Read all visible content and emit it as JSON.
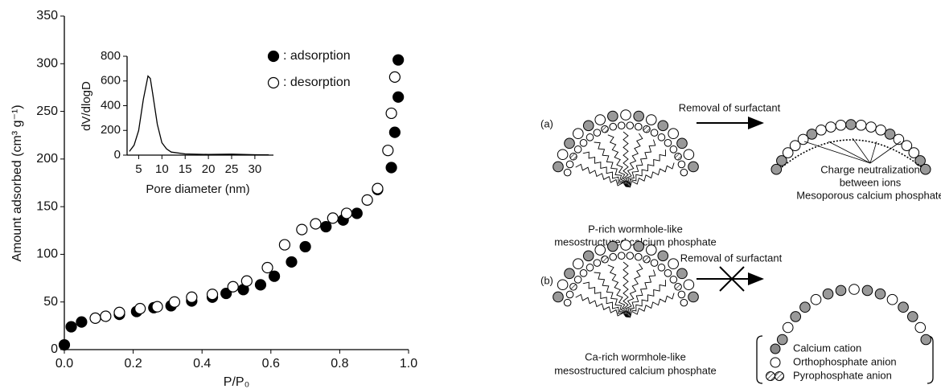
{
  "chart_data": [
    {
      "type": "scatter",
      "xlabel": "P/P₀",
      "ylabel": "Amount adsorbed (cm³ g⁻¹)",
      "xlim": [
        0,
        1
      ],
      "ylim": [
        0,
        350
      ],
      "xticks": [
        {
          "value": 0,
          "label": "0.0"
        },
        0.2,
        0.4,
        0.6,
        0.8,
        {
          "value": 1,
          "label": "1.0"
        }
      ],
      "yticks": [
        0,
        50,
        100,
        150,
        200,
        250,
        300,
        350
      ],
      "legend": "upper right",
      "series": [
        {
          "name": ": adsorption",
          "color": "#000000",
          "filled": true,
          "x": [
            0,
            0.02,
            0.05,
            0.16,
            0.21,
            0.26,
            0.31,
            0.37,
            0.43,
            0.47,
            0.52,
            0.57,
            0.61,
            0.66,
            0.7,
            0.76,
            0.81,
            0.85,
            0.91,
            0.95,
            0.96,
            0.97,
            0.97
          ],
          "values": [
            5,
            24,
            29,
            37,
            40,
            44,
            46,
            51,
            55,
            59,
            63,
            68,
            77,
            92,
            108,
            129,
            136,
            143,
            168,
            191,
            228,
            265,
            304
          ]
        },
        {
          "name": ": desorption",
          "color": "#000000",
          "filled": false,
          "x": [
            0.09,
            0.12,
            0.16,
            0.22,
            0.27,
            0.32,
            0.37,
            0.43,
            0.49,
            0.53,
            0.59,
            0.64,
            0.69,
            0.73,
            0.78,
            0.82,
            0.88,
            0.91,
            0.94,
            0.95,
            0.96
          ],
          "values": [
            33,
            35,
            39,
            43,
            45,
            50,
            55,
            58,
            66,
            72,
            86,
            110,
            126,
            132,
            138,
            143,
            157,
            169,
            209,
            248,
            286
          ]
        }
      ]
    },
    {
      "type": "line",
      "xlabel": "Pore diameter (nm)",
      "ylabel": "dV/dlogD",
      "color": "#000000",
      "xlim": [
        2.5,
        34
      ],
      "ylim": [
        0,
        800
      ],
      "xticks": [
        5,
        10,
        15,
        20,
        25,
        30
      ],
      "yticks": [
        0,
        200,
        400,
        600,
        800
      ],
      "x": [
        3,
        4,
        5,
        6,
        7,
        7.5,
        8,
        9,
        10,
        11,
        12,
        15,
        20,
        25,
        30,
        33
      ],
      "values": [
        30,
        80,
        200,
        450,
        640,
        620,
        500,
        250,
        100,
        50,
        25,
        10,
        5,
        8,
        3,
        2
      ]
    }
  ],
  "diagram": {
    "panel_a": {
      "label": "(a)",
      "arrow_label": "Removal of surfactant",
      "start_lines": [
        "P-rich wormhole-like",
        "mesostructured calcium phosphate"
      ],
      "product_lines": [
        "Charge neutralization",
        "between ions",
        "Mesoporous calcium phosphate"
      ]
    },
    "panel_b": {
      "label": "(b)",
      "arrow_label": "Removal of surfactant",
      "start_lines": [
        "Ca-rich wormhole-like",
        "mesostructured calcium phosphate"
      ]
    },
    "legend": [
      "Calcium cation",
      "Orthophosphate anion",
      "Pyrophosphate anion"
    ]
  }
}
